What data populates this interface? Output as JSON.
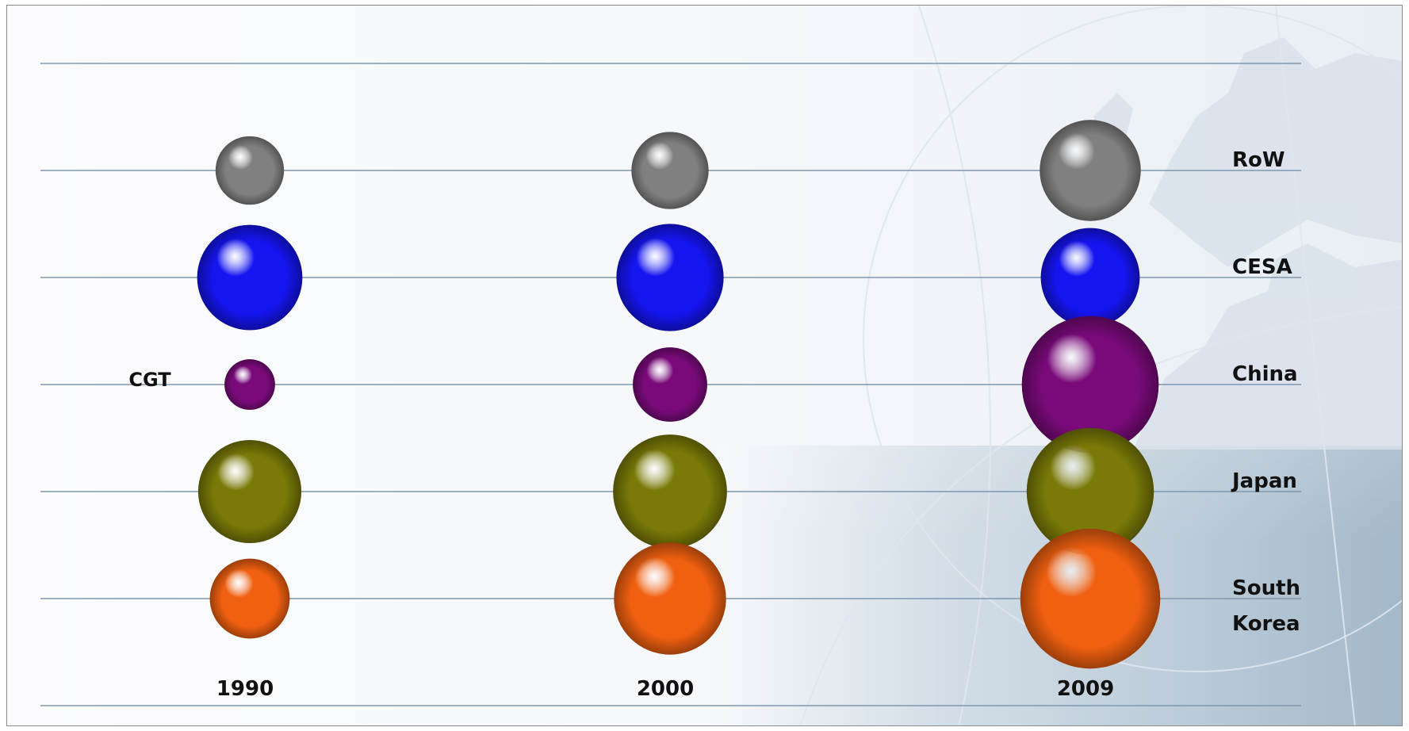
{
  "chart_data": {
    "type": "bubble",
    "title": "",
    "y_axis_label": "CGT",
    "categories": [
      "1990",
      "2000",
      "2009"
    ],
    "series": [
      {
        "name": "RoW",
        "label_lines": [
          "RoW"
        ],
        "color": "#808080",
        "values": [
          22,
          28,
          48
        ]
      },
      {
        "name": "CESA",
        "label_lines": [
          "CESA"
        ],
        "color": "#1515f0",
        "values": [
          52,
          54,
          46
        ]
      },
      {
        "name": "China",
        "label_lines": [
          "China"
        ],
        "color": "#7a0a7a",
        "values": [
          12,
          26,
          88
        ]
      },
      {
        "name": "Japan",
        "label_lines": [
          "Japan"
        ],
        "color": "#7a7a08",
        "values": [
          50,
          61,
          76
        ]
      },
      {
        "name": "South Korea",
        "label_lines": [
          "South",
          "Korea"
        ],
        "color": "#f06010",
        "values": [
          30,
          59,
          92
        ]
      }
    ],
    "grid": true,
    "legend": "right"
  }
}
